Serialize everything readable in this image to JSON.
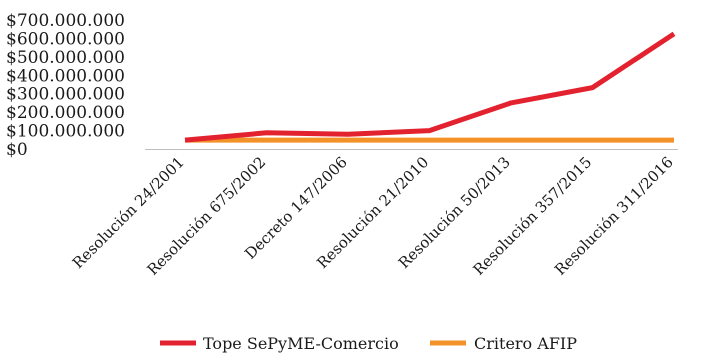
{
  "chart_data": {
    "type": "line",
    "categories": [
      "Resolución 24/2001",
      "Resolución 675/2002",
      "Decreto 147/2006",
      "Resolución 21/2010",
      "Resolución 50/2013",
      "Resolución 357/2015",
      "Resolución 311/2016"
    ],
    "series": [
      {
        "name": "Tope SePyME-Comercio",
        "color": "#e3222f",
        "values": [
          48000000,
          88000000,
          80000000,
          100000000,
          250000000,
          333000000,
          625000000
        ]
      },
      {
        "name": "Critero AFIP",
        "color": "#f4922a",
        "values": [
          48000000,
          48000000,
          48000000,
          48000000,
          48000000,
          48000000,
          48000000
        ]
      }
    ],
    "yticks": [
      "$0",
      "$100.000.000",
      "$200.000.000",
      "$300.000.000",
      "$400.000.000",
      "$500.000.000",
      "$600.000.000",
      "$700.000.000"
    ],
    "ylim": [
      0,
      700000000
    ],
    "grid": false,
    "legend_position": "bottom",
    "axis_color": "#bfbfbf"
  }
}
